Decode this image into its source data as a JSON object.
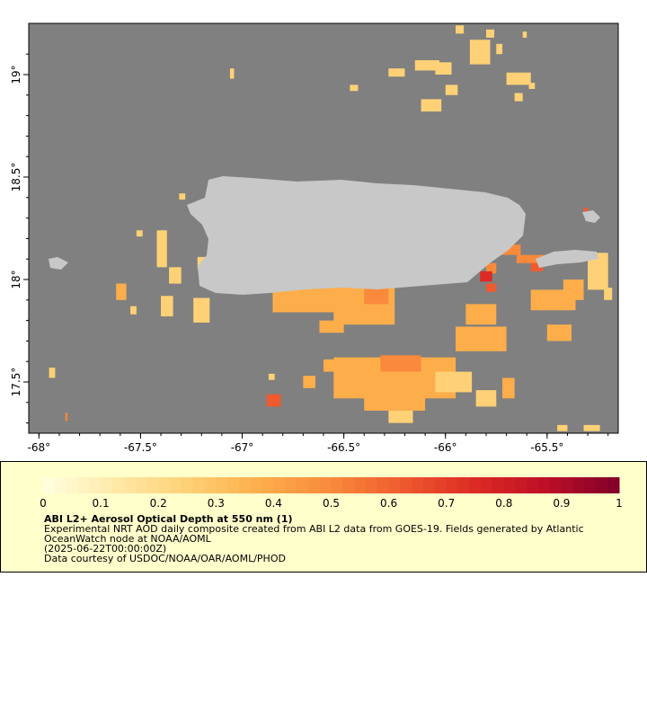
{
  "map": {
    "lon_range": [
      -68.05,
      -65.15
    ],
    "lat_range": [
      17.25,
      19.25
    ],
    "lon_ticks": [
      {
        "value": -68.0,
        "label": "-68°"
      },
      {
        "value": -67.5,
        "label": "-67.5°"
      },
      {
        "value": -67.0,
        "label": "-67°"
      },
      {
        "value": -66.5,
        "label": "-66.5°"
      },
      {
        "value": -66.0,
        "label": "-66°"
      },
      {
        "value": -65.5,
        "label": "-65.5°"
      }
    ],
    "lat_ticks": [
      {
        "value": 19.0,
        "label": "19°"
      },
      {
        "value": 18.5,
        "label": "18.5°"
      },
      {
        "value": 18.0,
        "label": "18°"
      },
      {
        "value": 17.5,
        "label": "17.5°"
      }
    ],
    "colors": {
      "ocean": "#808080",
      "land": "#c8c8c8",
      "scale": [
        "#ffffe0",
        "#ffe9a8",
        "#fed176",
        "#fdae4b",
        "#f98a3c",
        "#ef5a2e",
        "#dc2a24",
        "#bc0f27",
        "#7f0029"
      ]
    },
    "aod_patches": [
      {
        "lon": -65.88,
        "lat": 19.05,
        "w": 0.1,
        "h": 0.12,
        "v": 0.2
      },
      {
        "lon": -65.8,
        "lat": 19.18,
        "w": 0.04,
        "h": 0.04,
        "v": 0.2
      },
      {
        "lon": -65.75,
        "lat": 19.1,
        "w": 0.03,
        "h": 0.05,
        "v": 0.25
      },
      {
        "lon": -66.05,
        "lat": 19.0,
        "w": 0.08,
        "h": 0.06,
        "v": 0.2
      },
      {
        "lon": -66.15,
        "lat": 19.02,
        "w": 0.12,
        "h": 0.05,
        "v": 0.25
      },
      {
        "lon": -66.28,
        "lat": 18.99,
        "w": 0.08,
        "h": 0.04,
        "v": 0.25
      },
      {
        "lon": -66.0,
        "lat": 18.9,
        "w": 0.06,
        "h": 0.05,
        "v": 0.3
      },
      {
        "lon": -65.95,
        "lat": 19.2,
        "w": 0.04,
        "h": 0.04,
        "v": 0.2
      },
      {
        "lon": -65.62,
        "lat": 19.18,
        "w": 0.02,
        "h": 0.03,
        "v": 0.2
      },
      {
        "lon": -65.7,
        "lat": 18.95,
        "w": 0.12,
        "h": 0.06,
        "v": 0.2
      },
      {
        "lon": -65.66,
        "lat": 18.87,
        "w": 0.04,
        "h": 0.04,
        "v": 0.25
      },
      {
        "lon": -65.59,
        "lat": 18.93,
        "w": 0.03,
        "h": 0.03,
        "v": 0.25
      },
      {
        "lon": -66.12,
        "lat": 18.82,
        "w": 0.1,
        "h": 0.06,
        "v": 0.3
      },
      {
        "lon": -66.47,
        "lat": 18.92,
        "w": 0.04,
        "h": 0.03,
        "v": 0.2
      },
      {
        "lon": -67.06,
        "lat": 18.98,
        "w": 0.02,
        "h": 0.05,
        "v": 0.2
      },
      {
        "lon": -67.31,
        "lat": 18.39,
        "w": 0.03,
        "h": 0.03,
        "v": 0.3
      },
      {
        "lon": -67.42,
        "lat": 18.06,
        "w": 0.05,
        "h": 0.18,
        "v": 0.3
      },
      {
        "lon": -67.36,
        "lat": 17.98,
        "w": 0.06,
        "h": 0.08,
        "v": 0.3
      },
      {
        "lon": -67.52,
        "lat": 18.21,
        "w": 0.03,
        "h": 0.03,
        "v": 0.3
      },
      {
        "lon": -67.62,
        "lat": 17.9,
        "w": 0.05,
        "h": 0.08,
        "v": 0.35
      },
      {
        "lon": -67.55,
        "lat": 17.83,
        "w": 0.03,
        "h": 0.04,
        "v": 0.3
      },
      {
        "lon": -67.4,
        "lat": 17.82,
        "w": 0.06,
        "h": 0.1,
        "v": 0.3
      },
      {
        "lon": -67.24,
        "lat": 17.79,
        "w": 0.08,
        "h": 0.12,
        "v": 0.3
      },
      {
        "lon": -67.22,
        "lat": 18.05,
        "w": 0.06,
        "h": 0.06,
        "v": 0.3
      },
      {
        "lon": -67.95,
        "lat": 17.52,
        "w": 0.03,
        "h": 0.05,
        "v": 0.3
      },
      {
        "lon": -67.87,
        "lat": 17.31,
        "w": 0.01,
        "h": 0.04,
        "v": 0.55
      },
      {
        "lon": -66.88,
        "lat": 17.38,
        "w": 0.07,
        "h": 0.06,
        "v": 0.6
      },
      {
        "lon": -66.85,
        "lat": 17.84,
        "w": 0.45,
        "h": 0.12,
        "v": 0.4
      },
      {
        "lon": -66.8,
        "lat": 17.94,
        "w": 0.3,
        "h": 0.04,
        "v": 0.4
      },
      {
        "lon": -66.55,
        "lat": 17.78,
        "w": 0.3,
        "h": 0.18,
        "v": 0.35
      },
      {
        "lon": -66.62,
        "lat": 17.74,
        "w": 0.12,
        "h": 0.06,
        "v": 0.4
      },
      {
        "lon": -66.4,
        "lat": 17.88,
        "w": 0.12,
        "h": 0.08,
        "v": 0.45
      },
      {
        "lon": -66.55,
        "lat": 17.42,
        "w": 0.6,
        "h": 0.2,
        "v": 0.4
      },
      {
        "lon": -66.4,
        "lat": 17.36,
        "w": 0.3,
        "h": 0.1,
        "v": 0.35
      },
      {
        "lon": -66.32,
        "lat": 17.55,
        "w": 0.2,
        "h": 0.08,
        "v": 0.5
      },
      {
        "lon": -66.28,
        "lat": 17.3,
        "w": 0.12,
        "h": 0.06,
        "v": 0.3
      },
      {
        "lon": -66.6,
        "lat": 17.55,
        "w": 0.1,
        "h": 0.06,
        "v": 0.35
      },
      {
        "lon": -66.7,
        "lat": 17.47,
        "w": 0.06,
        "h": 0.06,
        "v": 0.35
      },
      {
        "lon": -66.87,
        "lat": 17.51,
        "w": 0.03,
        "h": 0.03,
        "v": 0.3
      },
      {
        "lon": -65.95,
        "lat": 17.65,
        "w": 0.25,
        "h": 0.12,
        "v": 0.4
      },
      {
        "lon": -66.05,
        "lat": 17.45,
        "w": 0.18,
        "h": 0.1,
        "v": 0.3
      },
      {
        "lon": -65.85,
        "lat": 17.38,
        "w": 0.1,
        "h": 0.08,
        "v": 0.25
      },
      {
        "lon": -65.72,
        "lat": 17.42,
        "w": 0.06,
        "h": 0.1,
        "v": 0.35
      },
      {
        "lon": -65.5,
        "lat": 17.7,
        "w": 0.12,
        "h": 0.08,
        "v": 0.35
      },
      {
        "lon": -65.9,
        "lat": 17.78,
        "w": 0.15,
        "h": 0.1,
        "v": 0.4
      },
      {
        "lon": -65.58,
        "lat": 17.85,
        "w": 0.22,
        "h": 0.1,
        "v": 0.4
      },
      {
        "lon": -65.42,
        "lat": 17.9,
        "w": 0.1,
        "h": 0.1,
        "v": 0.35
      },
      {
        "lon": -65.3,
        "lat": 17.95,
        "w": 0.1,
        "h": 0.18,
        "v": 0.3
      },
      {
        "lon": -65.22,
        "lat": 17.9,
        "w": 0.04,
        "h": 0.06,
        "v": 0.3
      },
      {
        "lon": -65.75,
        "lat": 18.12,
        "w": 0.12,
        "h": 0.05,
        "v": 0.45
      },
      {
        "lon": -65.65,
        "lat": 18.08,
        "w": 0.14,
        "h": 0.04,
        "v": 0.55
      },
      {
        "lon": -65.58,
        "lat": 18.04,
        "w": 0.06,
        "h": 0.04,
        "v": 0.65
      },
      {
        "lon": -65.8,
        "lat": 18.03,
        "w": 0.05,
        "h": 0.05,
        "v": 0.55
      },
      {
        "lon": -65.83,
        "lat": 17.99,
        "w": 0.06,
        "h": 0.05,
        "v": 0.75
      },
      {
        "lon": -65.8,
        "lat": 17.94,
        "w": 0.05,
        "h": 0.04,
        "v": 0.65
      },
      {
        "lon": -65.75,
        "lat": 18.37,
        "w": 0.02,
        "h": 0.02,
        "v": 0.6
      },
      {
        "lon": -65.32,
        "lat": 18.33,
        "w": 0.02,
        "h": 0.02,
        "v": 0.6
      },
      {
        "lon": -65.32,
        "lat": 17.26,
        "w": 0.08,
        "h": 0.03,
        "v": 0.3
      },
      {
        "lon": -65.45,
        "lat": 17.26,
        "w": 0.05,
        "h": 0.03,
        "v": 0.25
      }
    ]
  },
  "legend": {
    "ticks": [
      "0",
      "0.1",
      "0.2",
      "0.3",
      "0.4",
      "0.5",
      "0.6",
      "0.7",
      "0.8",
      "0.9",
      "1"
    ],
    "title": "ABI L2+ Aerosol Optical Depth at 550 nm (1)",
    "line1": "Experimental NRT AOD daily composite created from ABI L2 data from GOES-19. Fields generated by Atlantic OceanWatch node at NOAA/AOML",
    "line2": "(2025-06-22T00:00:00Z)",
    "line3": "Data courtesy of USDOC/NOAA/OAR/AOML/PHOD"
  }
}
